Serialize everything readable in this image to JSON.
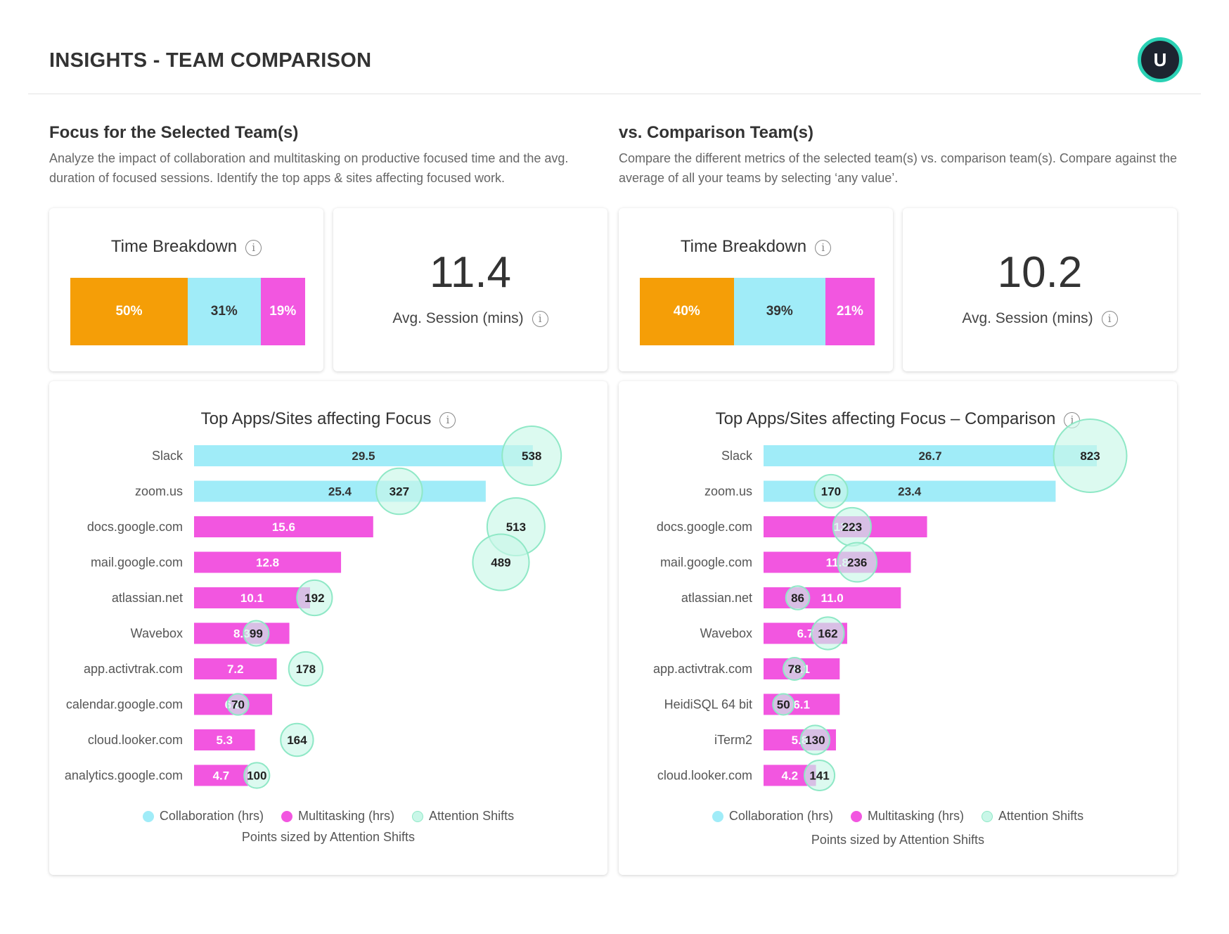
{
  "header": {
    "title": "INSIGHTS - TEAM COMPARISON",
    "avatar_initial": "U"
  },
  "left": {
    "title": "Focus for the Selected Team(s)",
    "description": "Analyze the impact of collaboration and multitasking on productive focused time and the avg. duration of focused sessions. Identify the top apps & sites affecting focused work.",
    "time_breakdown": {
      "title": "Time Breakdown",
      "segments": [
        {
          "label": "50%",
          "value": 50
        },
        {
          "label": "31%",
          "value": 31
        },
        {
          "label": "19%",
          "value": 19
        }
      ]
    },
    "avg_session": {
      "value": "11.4",
      "label": "Avg. Session (mins)"
    }
  },
  "right": {
    "title": "vs. Comparison Team(s)",
    "description": "Compare the different metrics of the selected team(s) vs. comparison team(s). Compare against the average of all your teams by selecting ‘any value’.",
    "time_breakdown": {
      "title": "Time Breakdown",
      "segments": [
        {
          "label": "40%",
          "value": 40
        },
        {
          "label": "39%",
          "value": 39
        },
        {
          "label": "21%",
          "value": 21
        }
      ]
    },
    "avg_session": {
      "value": "10.2",
      "label": "Avg. Session (mins)"
    }
  },
  "legend": {
    "collaboration": "Collaboration (hrs)",
    "multitasking": "Multitasking (hrs)",
    "attention": "Attention Shifts",
    "note": "Points sized by Attention Shifts"
  },
  "colors": {
    "collaboration": "#a0ecf8",
    "multitasking": "#f256e0",
    "attention": "#c9f7e8",
    "attention_stroke": "#8fe8c6",
    "time_a": "#f59e07",
    "accent": "#2ad1b4"
  },
  "chart_data": [
    {
      "type": "bar",
      "title": "Top Apps/Sites affecting Focus",
      "categories": [
        "Slack",
        "zoom.us",
        "docs.google.com",
        "mail.google.com",
        "atlassian.net",
        "Wavebox",
        "app.activtrak.com",
        "calendar.google.com",
        "cloud.looker.com",
        "analytics.google.com"
      ],
      "bar_type": [
        "collaboration",
        "collaboration",
        "multitasking",
        "multitasking",
        "multitasking",
        "multitasking",
        "multitasking",
        "multitasking",
        "multitasking",
        "multitasking"
      ],
      "series": [
        {
          "name": "Collaboration (hrs)",
          "values": [
            29.5,
            25.4,
            null,
            null,
            null,
            null,
            null,
            null,
            null,
            null
          ]
        },
        {
          "name": "Multitasking (hrs)",
          "values": [
            null,
            null,
            15.6,
            12.8,
            10.1,
            8.3,
            7.2,
            6.8,
            5.3,
            4.7
          ]
        }
      ],
      "attention_shifts": [
        538,
        327,
        513,
        489,
        192,
        99,
        178,
        70,
        164,
        100
      ],
      "attention_offset": [
        0.05,
        -0.6,
        0.25,
        -0.25,
        0.0,
        0.0,
        0.0,
        0.0,
        0.0,
        0.0
      ],
      "xlim": [
        0,
        30
      ]
    },
    {
      "type": "bar",
      "title": "Top Apps/Sites affecting Focus – Comparison",
      "categories": [
        "Slack",
        "zoom.us",
        "docs.google.com",
        "mail.google.com",
        "atlassian.net",
        "Wavebox",
        "app.activtrak.com",
        "HeidiSQL 64 bit",
        "iTerm2",
        "cloud.looker.com"
      ],
      "bar_type": [
        "collaboration",
        "collaboration",
        "multitasking",
        "multitasking",
        "multitasking",
        "multitasking",
        "multitasking",
        "multitasking",
        "multitasking",
        "multitasking"
      ],
      "series": [
        {
          "name": "Collaboration (hrs)",
          "values": [
            26.7,
            23.4,
            null,
            null,
            null,
            null,
            null,
            null,
            null,
            null
          ]
        },
        {
          "name": "Multitasking (hrs)",
          "values": [
            null,
            null,
            13.1,
            11.8,
            11.0,
            6.7,
            6.1,
            6.1,
            5.8,
            4.2
          ]
        }
      ],
      "attention_shifts": [
        823,
        170,
        223,
        236,
        86,
        162,
        78,
        50,
        130,
        141
      ],
      "attention_offset": [
        0.0,
        0.0,
        0.0,
        0.0,
        0.0,
        0.0,
        0.0,
        0.0,
        0.2,
        0.0
      ],
      "xlim": [
        0,
        26.7
      ]
    }
  ]
}
